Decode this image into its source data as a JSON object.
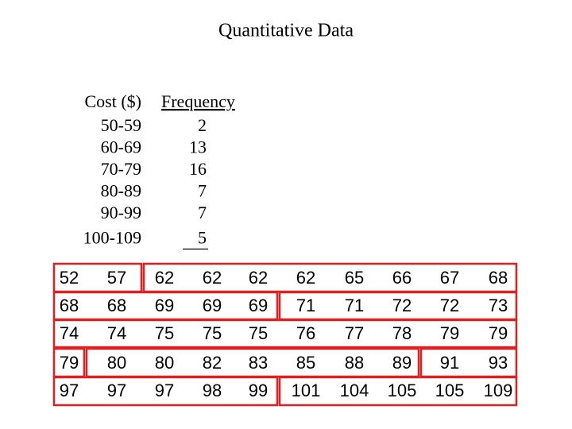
{
  "header": {
    "title": "Quantitative Data"
  },
  "table": {
    "columns": [
      "Cost ($)",
      "Frequency"
    ],
    "rows": [
      [
        "50-59",
        2
      ],
      [
        "60-69",
        13
      ],
      [
        "70-79",
        16
      ],
      [
        "80-89",
        7
      ],
      [
        "90-99",
        7
      ],
      [
        "100-109",
        5
      ]
    ]
  },
  "data_grid": [
    [
      52,
      57,
      62,
      62,
      62,
      62,
      65,
      66,
      67,
      68
    ],
    [
      68,
      68,
      69,
      69,
      69,
      71,
      71,
      72,
      72,
      73
    ],
    [
      74,
      74,
      75,
      75,
      75,
      76,
      77,
      78,
      79,
      79
    ],
    [
      79,
      80,
      80,
      82,
      83,
      85,
      88,
      89,
      91,
      93
    ],
    [
      97,
      97,
      97,
      98,
      99,
      101,
      104,
      105,
      105,
      109
    ]
  ]
}
